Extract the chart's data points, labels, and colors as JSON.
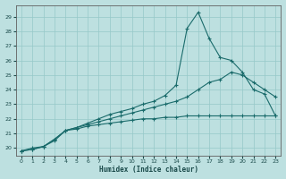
{
  "xlabel": "Humidex (Indice chaleur)",
  "background_color": "#bde0e0",
  "grid_color": "#96c8c8",
  "line_color": "#1a6b6b",
  "xlim": [
    -0.5,
    23.5
  ],
  "ylim": [
    19.5,
    29.8
  ],
  "xticks": [
    0,
    1,
    2,
    3,
    4,
    5,
    6,
    7,
    8,
    9,
    10,
    11,
    12,
    13,
    14,
    15,
    16,
    17,
    18,
    19,
    20,
    21,
    22,
    23
  ],
  "yticks": [
    20,
    21,
    22,
    23,
    24,
    25,
    26,
    27,
    28,
    29
  ],
  "series1_x": [
    0,
    1,
    2,
    3,
    4,
    5,
    6,
    7,
    8,
    9,
    10,
    11,
    12,
    13,
    14,
    15,
    16,
    17,
    18,
    19,
    20,
    21,
    22,
    23
  ],
  "series1_y": [
    19.8,
    20.0,
    20.1,
    20.5,
    21.2,
    21.3,
    21.5,
    21.6,
    21.7,
    21.8,
    21.9,
    22.0,
    22.0,
    22.1,
    22.1,
    22.2,
    22.2,
    22.2,
    22.2,
    22.2,
    22.2,
    22.2,
    22.2,
    22.2
  ],
  "series2_x": [
    0,
    1,
    2,
    3,
    4,
    5,
    6,
    7,
    8,
    9,
    10,
    11,
    12,
    13,
    14,
    15,
    16,
    17,
    18,
    19,
    20,
    21,
    22,
    23
  ],
  "series2_y": [
    19.8,
    19.9,
    20.1,
    20.6,
    21.2,
    21.4,
    21.6,
    21.8,
    22.0,
    22.2,
    22.4,
    22.6,
    22.8,
    23.0,
    23.2,
    23.5,
    24.0,
    24.5,
    24.7,
    25.2,
    25.0,
    24.5,
    24.0,
    23.5
  ],
  "series3_x": [
    0,
    1,
    2,
    3,
    4,
    5,
    6,
    7,
    8,
    9,
    10,
    11,
    12,
    13,
    14,
    15,
    16,
    17,
    18,
    19,
    20,
    21,
    22,
    23
  ],
  "series3_y": [
    19.8,
    19.9,
    20.1,
    20.6,
    21.2,
    21.4,
    21.7,
    22.0,
    22.3,
    22.5,
    22.7,
    23.0,
    23.2,
    23.6,
    24.3,
    28.2,
    29.3,
    27.5,
    26.2,
    26.0,
    25.2,
    24.0,
    23.7,
    22.2
  ]
}
